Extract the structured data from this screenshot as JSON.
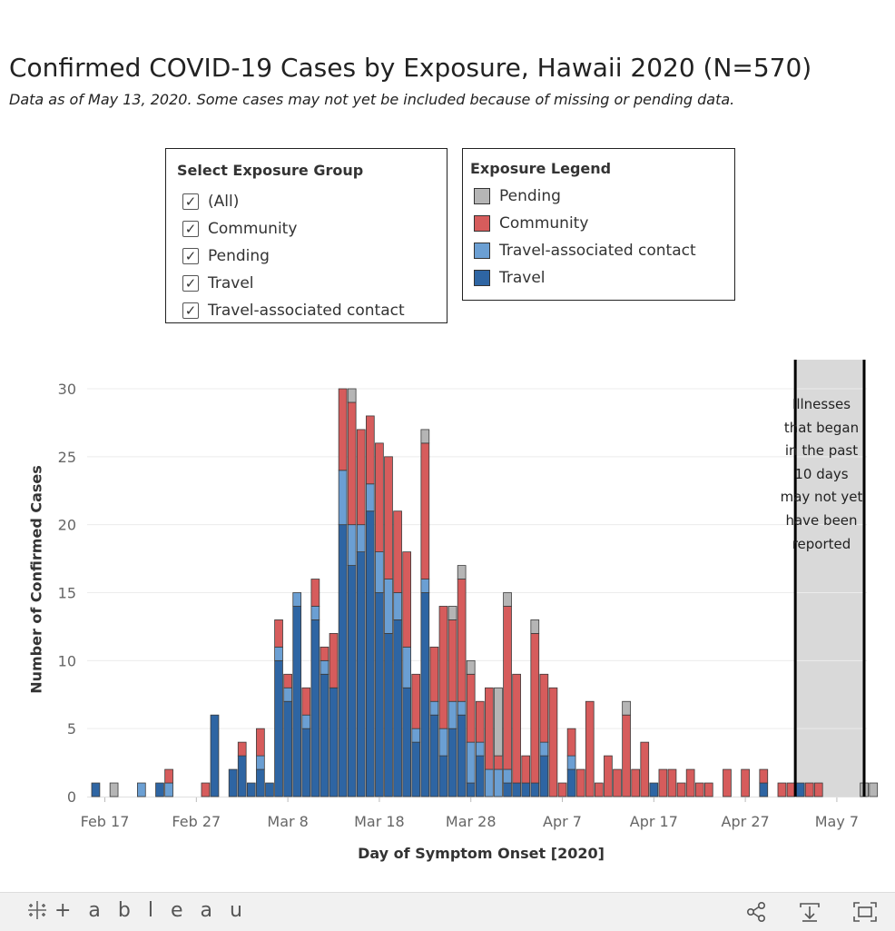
{
  "title": "Confirmed COVID-19 Cases by Exposure, Hawaii 2020 (N=570)",
  "subtitle": "Data as of May 13, 2020. Some cases may not yet be included because of missing or pending data.",
  "filter": {
    "title": "Select Exposure Group",
    "items": [
      {
        "label": "(All)",
        "checked": true
      },
      {
        "label": "Community",
        "checked": true
      },
      {
        "label": "Pending",
        "checked": true
      },
      {
        "label": "Travel",
        "checked": true
      },
      {
        "label": "Travel-associated contact",
        "checked": true
      }
    ],
    "check_glyph": "✓"
  },
  "legend": {
    "title": "Exposure Legend",
    "items": [
      {
        "label": "Pending",
        "color": "#b5b5b5"
      },
      {
        "label": "Community",
        "color": "#d65c5c"
      },
      {
        "label": "Travel-associated contact",
        "color": "#6b9fd3"
      },
      {
        "label": "Travel",
        "color": "#2e65a3"
      }
    ]
  },
  "note": {
    "lines": [
      "Illnesses",
      "that began",
      "in the past",
      "10 days",
      "may not yet",
      "have been",
      "reported"
    ]
  },
  "footer": {
    "logo_text": "+ a b l e a u",
    "icons": [
      "share-icon",
      "download-icon",
      "fullscreen-icon"
    ]
  },
  "chart_data": {
    "type": "bar",
    "stacked": true,
    "xlabel": "Day of Symptom Onset [2020]",
    "ylabel": "Number of Confirmed Cases",
    "ylim": [
      0,
      31
    ],
    "yticks": [
      0,
      5,
      10,
      15,
      20,
      25,
      30
    ],
    "x_start": "2020-02-16",
    "x_end": "2020-05-13",
    "x_tick_labels": [
      {
        "date": "2020-02-17",
        "label": "Feb 17"
      },
      {
        "date": "2020-02-27",
        "label": "Feb 27"
      },
      {
        "date": "2020-03-08",
        "label": "Mar 8"
      },
      {
        "date": "2020-03-18",
        "label": "Mar 18"
      },
      {
        "date": "2020-03-28",
        "label": "Mar 28"
      },
      {
        "date": "2020-04-07",
        "label": "Apr 7"
      },
      {
        "date": "2020-04-17",
        "label": "Apr 17"
      },
      {
        "date": "2020-04-27",
        "label": "Apr 27"
      },
      {
        "date": "2020-05-07",
        "label": "May 7"
      }
    ],
    "shaded_region": {
      "from": "2020-05-03",
      "to": "2020-05-13"
    },
    "grid": true,
    "series_order": [
      "Travel",
      "Travel-associated contact",
      "Community",
      "Pending"
    ],
    "series_colors": {
      "Travel": "#2e65a3",
      "Travel-associated contact": "#6b9fd3",
      "Community": "#d65c5c",
      "Pending": "#b5b5b5"
    },
    "days": [
      {
        "date": "2020-02-16",
        "Travel": 1,
        "Travel-associated contact": 0,
        "Community": 0,
        "Pending": 0
      },
      {
        "date": "2020-02-18",
        "Travel": 0,
        "Travel-associated contact": 0,
        "Community": 0,
        "Pending": 1
      },
      {
        "date": "2020-02-21",
        "Travel": 0,
        "Travel-associated contact": 1,
        "Community": 0,
        "Pending": 0
      },
      {
        "date": "2020-02-23",
        "Travel": 1,
        "Travel-associated contact": 0,
        "Community": 0,
        "Pending": 0
      },
      {
        "date": "2020-02-24",
        "Travel": 0,
        "Travel-associated contact": 1,
        "Community": 1,
        "Pending": 0
      },
      {
        "date": "2020-02-28",
        "Travel": 0,
        "Travel-associated contact": 0,
        "Community": 1,
        "Pending": 0
      },
      {
        "date": "2020-02-29",
        "Travel": 6,
        "Travel-associated contact": 0,
        "Community": 0,
        "Pending": 0
      },
      {
        "date": "2020-03-02",
        "Travel": 2,
        "Travel-associated contact": 0,
        "Community": 0,
        "Pending": 0
      },
      {
        "date": "2020-03-03",
        "Travel": 3,
        "Travel-associated contact": 0,
        "Community": 1,
        "Pending": 0
      },
      {
        "date": "2020-03-04",
        "Travel": 1,
        "Travel-associated contact": 0,
        "Community": 0,
        "Pending": 0
      },
      {
        "date": "2020-03-05",
        "Travel": 2,
        "Travel-associated contact": 1,
        "Community": 2,
        "Pending": 0
      },
      {
        "date": "2020-03-06",
        "Travel": 1,
        "Travel-associated contact": 0,
        "Community": 0,
        "Pending": 0
      },
      {
        "date": "2020-03-07",
        "Travel": 10,
        "Travel-associated contact": 1,
        "Community": 2,
        "Pending": 0
      },
      {
        "date": "2020-03-08",
        "Travel": 7,
        "Travel-associated contact": 1,
        "Community": 1,
        "Pending": 0
      },
      {
        "date": "2020-03-09",
        "Travel": 14,
        "Travel-associated contact": 1,
        "Community": 0,
        "Pending": 0
      },
      {
        "date": "2020-03-10",
        "Travel": 5,
        "Travel-associated contact": 1,
        "Community": 2,
        "Pending": 0
      },
      {
        "date": "2020-03-11",
        "Travel": 13,
        "Travel-associated contact": 1,
        "Community": 2,
        "Pending": 0
      },
      {
        "date": "2020-03-12",
        "Travel": 9,
        "Travel-associated contact": 1,
        "Community": 1,
        "Pending": 0
      },
      {
        "date": "2020-03-13",
        "Travel": 8,
        "Travel-associated contact": 0,
        "Community": 4,
        "Pending": 0
      },
      {
        "date": "2020-03-14",
        "Travel": 20,
        "Travel-associated contact": 4,
        "Community": 6,
        "Pending": 0
      },
      {
        "date": "2020-03-15",
        "Travel": 17,
        "Travel-associated contact": 3,
        "Community": 9,
        "Pending": 1
      },
      {
        "date": "2020-03-16",
        "Travel": 18,
        "Travel-associated contact": 2,
        "Community": 7,
        "Pending": 0
      },
      {
        "date": "2020-03-17",
        "Travel": 21,
        "Travel-associated contact": 2,
        "Community": 5,
        "Pending": 0
      },
      {
        "date": "2020-03-18",
        "Travel": 15,
        "Travel-associated contact": 3,
        "Community": 8,
        "Pending": 0
      },
      {
        "date": "2020-03-19",
        "Travel": 12,
        "Travel-associated contact": 4,
        "Community": 9,
        "Pending": 0
      },
      {
        "date": "2020-03-20",
        "Travel": 13,
        "Travel-associated contact": 2,
        "Community": 6,
        "Pending": 0
      },
      {
        "date": "2020-03-21",
        "Travel": 8,
        "Travel-associated contact": 3,
        "Community": 7,
        "Pending": 0
      },
      {
        "date": "2020-03-22",
        "Travel": 4,
        "Travel-associated contact": 1,
        "Community": 4,
        "Pending": 0
      },
      {
        "date": "2020-03-23",
        "Travel": 15,
        "Travel-associated contact": 1,
        "Community": 10,
        "Pending": 1
      },
      {
        "date": "2020-03-24",
        "Travel": 6,
        "Travel-associated contact": 1,
        "Community": 4,
        "Pending": 0
      },
      {
        "date": "2020-03-25",
        "Travel": 3,
        "Travel-associated contact": 2,
        "Community": 9,
        "Pending": 0
      },
      {
        "date": "2020-03-26",
        "Travel": 5,
        "Travel-associated contact": 2,
        "Community": 6,
        "Pending": 1
      },
      {
        "date": "2020-03-27",
        "Travel": 6,
        "Travel-associated contact": 1,
        "Community": 9,
        "Pending": 1
      },
      {
        "date": "2020-03-28",
        "Travel": 1,
        "Travel-associated contact": 3,
        "Community": 5,
        "Pending": 1
      },
      {
        "date": "2020-03-29",
        "Travel": 3,
        "Travel-associated contact": 1,
        "Community": 3,
        "Pending": 0
      },
      {
        "date": "2020-03-30",
        "Travel": 0,
        "Travel-associated contact": 2,
        "Community": 6,
        "Pending": 0
      },
      {
        "date": "2020-03-31",
        "Travel": 0,
        "Travel-associated contact": 2,
        "Community": 1,
        "Pending": 5
      },
      {
        "date": "2020-04-01",
        "Travel": 1,
        "Travel-associated contact": 1,
        "Community": 12,
        "Pending": 1
      },
      {
        "date": "2020-04-02",
        "Travel": 1,
        "Travel-associated contact": 0,
        "Community": 8,
        "Pending": 0
      },
      {
        "date": "2020-04-03",
        "Travel": 1,
        "Travel-associated contact": 0,
        "Community": 2,
        "Pending": 0
      },
      {
        "date": "2020-04-04",
        "Travel": 1,
        "Travel-associated contact": 0,
        "Community": 11,
        "Pending": 1
      },
      {
        "date": "2020-04-05",
        "Travel": 3,
        "Travel-associated contact": 1,
        "Community": 5,
        "Pending": 0
      },
      {
        "date": "2020-04-06",
        "Travel": 0,
        "Travel-associated contact": 0,
        "Community": 8,
        "Pending": 0
      },
      {
        "date": "2020-04-07",
        "Travel": 0,
        "Travel-associated contact": 0,
        "Community": 1,
        "Pending": 0
      },
      {
        "date": "2020-04-08",
        "Travel": 2,
        "Travel-associated contact": 1,
        "Community": 2,
        "Pending": 0
      },
      {
        "date": "2020-04-09",
        "Travel": 0,
        "Travel-associated contact": 0,
        "Community": 2,
        "Pending": 0
      },
      {
        "date": "2020-04-10",
        "Travel": 0,
        "Travel-associated contact": 0,
        "Community": 7,
        "Pending": 0
      },
      {
        "date": "2020-04-11",
        "Travel": 0,
        "Travel-associated contact": 0,
        "Community": 1,
        "Pending": 0
      },
      {
        "date": "2020-04-12",
        "Travel": 0,
        "Travel-associated contact": 0,
        "Community": 3,
        "Pending": 0
      },
      {
        "date": "2020-04-13",
        "Travel": 0,
        "Travel-associated contact": 0,
        "Community": 2,
        "Pending": 0
      },
      {
        "date": "2020-04-14",
        "Travel": 0,
        "Travel-associated contact": 0,
        "Community": 6,
        "Pending": 1
      },
      {
        "date": "2020-04-15",
        "Travel": 0,
        "Travel-associated contact": 0,
        "Community": 2,
        "Pending": 0
      },
      {
        "date": "2020-04-16",
        "Travel": 0,
        "Travel-associated contact": 0,
        "Community": 4,
        "Pending": 0
      },
      {
        "date": "2020-04-17",
        "Travel": 1,
        "Travel-associated contact": 0,
        "Community": 0,
        "Pending": 0
      },
      {
        "date": "2020-04-18",
        "Travel": 0,
        "Travel-associated contact": 0,
        "Community": 2,
        "Pending": 0
      },
      {
        "date": "2020-04-19",
        "Travel": 0,
        "Travel-associated contact": 0,
        "Community": 2,
        "Pending": 0
      },
      {
        "date": "2020-04-20",
        "Travel": 0,
        "Travel-associated contact": 0,
        "Community": 1,
        "Pending": 0
      },
      {
        "date": "2020-04-21",
        "Travel": 0,
        "Travel-associated contact": 0,
        "Community": 2,
        "Pending": 0
      },
      {
        "date": "2020-04-22",
        "Travel": 0,
        "Travel-associated contact": 0,
        "Community": 1,
        "Pending": 0
      },
      {
        "date": "2020-04-23",
        "Travel": 0,
        "Travel-associated contact": 0,
        "Community": 1,
        "Pending": 0
      },
      {
        "date": "2020-04-25",
        "Travel": 0,
        "Travel-associated contact": 0,
        "Community": 2,
        "Pending": 0
      },
      {
        "date": "2020-04-27",
        "Travel": 0,
        "Travel-associated contact": 0,
        "Community": 2,
        "Pending": 0
      },
      {
        "date": "2020-04-29",
        "Travel": 1,
        "Travel-associated contact": 0,
        "Community": 1,
        "Pending": 0
      },
      {
        "date": "2020-05-01",
        "Travel": 0,
        "Travel-associated contact": 0,
        "Community": 1,
        "Pending": 0
      },
      {
        "date": "2020-05-02",
        "Travel": 0,
        "Travel-associated contact": 0,
        "Community": 1,
        "Pending": 0
      },
      {
        "date": "2020-05-03",
        "Travel": 1,
        "Travel-associated contact": 0,
        "Community": 0,
        "Pending": 0
      },
      {
        "date": "2020-05-04",
        "Travel": 0,
        "Travel-associated contact": 0,
        "Community": 1,
        "Pending": 0
      },
      {
        "date": "2020-05-05",
        "Travel": 0,
        "Travel-associated contact": 0,
        "Community": 1,
        "Pending": 0
      },
      {
        "date": "2020-05-10",
        "Travel": 0,
        "Travel-associated contact": 0,
        "Community": 0,
        "Pending": 1
      },
      {
        "date": "2020-05-11",
        "Travel": 0,
        "Travel-associated contact": 0,
        "Community": 0,
        "Pending": 1
      }
    ]
  }
}
